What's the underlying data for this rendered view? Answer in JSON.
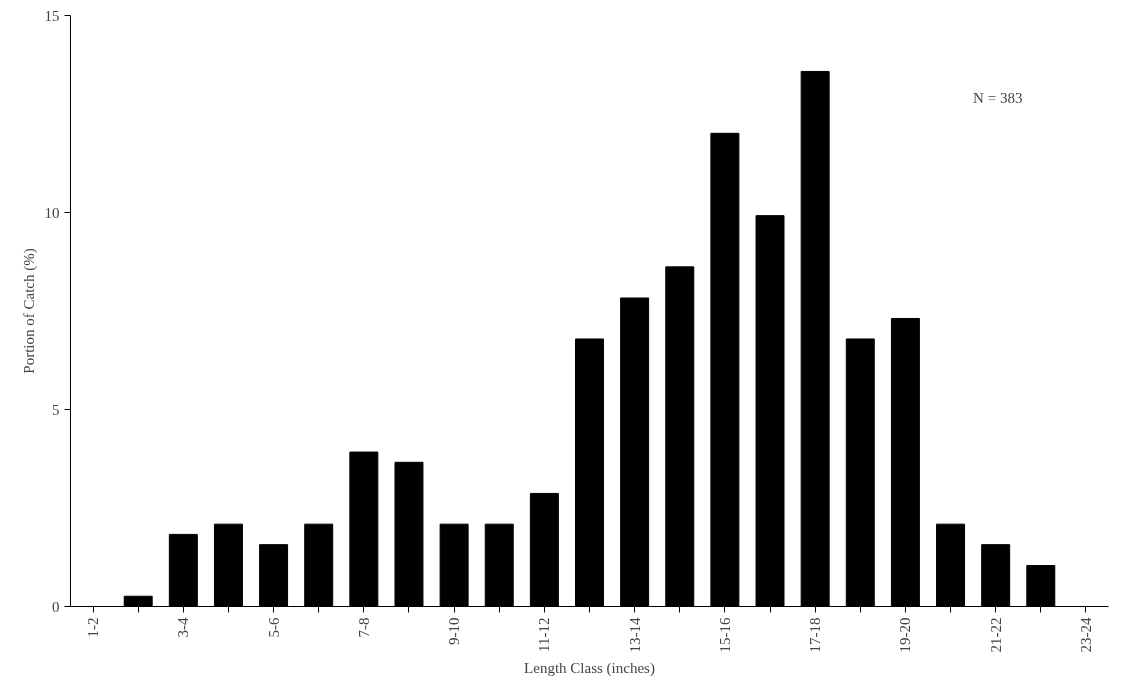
{
  "chart_data": {
    "type": "bar",
    "xlabel": "Length Class (inches)",
    "ylabel": "Portion of Catch (%)",
    "categories": [
      "1-2",
      null,
      "3-4",
      null,
      "5-6",
      null,
      "7-8",
      null,
      "9-10",
      null,
      "11-12",
      null,
      "13-14",
      null,
      "15-16",
      null,
      "17-18",
      null,
      "19-20",
      null,
      "21-22",
      null,
      "23-24"
    ],
    "values": [
      0,
      0.26,
      1.83,
      2.09,
      1.57,
      2.09,
      3.92,
      3.66,
      2.09,
      2.09,
      2.87,
      6.79,
      7.83,
      8.62,
      12.01,
      9.92,
      13.58,
      6.79,
      7.31,
      2.09,
      1.57,
      1.04,
      0
    ],
    "color": "#000000",
    "ylim": [
      0,
      15
    ],
    "yticks": [
      0,
      5,
      10,
      15
    ],
    "grid": false,
    "annotations": [
      "N = 383"
    ]
  }
}
